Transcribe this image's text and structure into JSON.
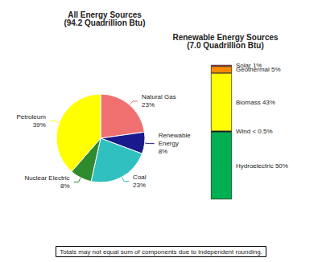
{
  "chart_data": [
    {
      "type": "pie",
      "title": "All Energy Sources\n(94.2 Quadrillion Btu)",
      "categories": [
        "Natural Gas",
        "Renewable\nEnergy",
        "Coal",
        "Nuclear Electric",
        "Petroleum"
      ],
      "values": [
        23,
        8,
        23,
        8,
        39
      ],
      "value_labels": [
        "23%",
        "8%",
        "23%",
        "8%",
        "39%"
      ],
      "colors": [
        "#F07070",
        "#1A1A8C",
        "#30C0C0",
        "#2E8B2E",
        "#FFFF00"
      ],
      "data_labels": true,
      "annotations": [
        "Totals may not equal sum of components due to independent rounding."
      ]
    },
    {
      "type": "bar",
      "title": "Renewable Energy Sources\n(7.0 Quadrillion Btu)",
      "stacked": true,
      "categories": [
        null
      ],
      "series": [
        {
          "name": "Hydroelectric 50%",
          "color": "#00B050",
          "values": [
            50
          ]
        },
        {
          "name": "Wind < 0.5%",
          "color": "#000000",
          "values": [
            0.5
          ]
        },
        {
          "name": "Biomass 43%",
          "color": "#FFFF00",
          "values": [
            43
          ]
        },
        {
          "name": "Geothermal 5%",
          "color": "#FF8C00",
          "values": [
            5
          ]
        },
        {
          "name": "Solar 1%",
          "color": "#FF4040",
          "values": [
            1
          ]
        }
      ],
      "ylim": [
        0,
        100
      ],
      "tick_labels": false
    }
  ]
}
